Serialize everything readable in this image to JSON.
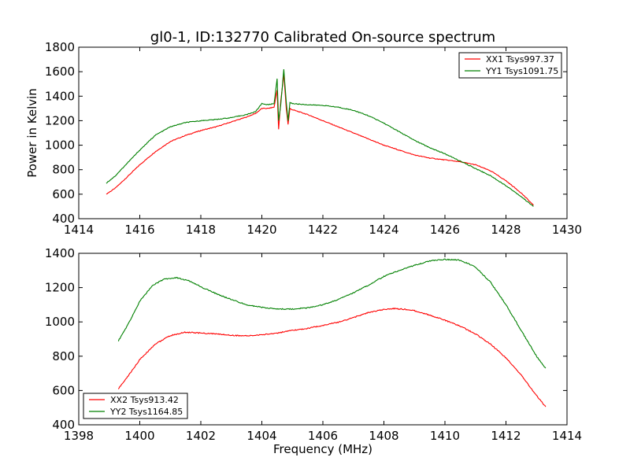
{
  "title": "gl0-1, ID:132770 Calibrated On-source spectrum",
  "chart_data": [
    {
      "type": "line",
      "title": "gl0-1, ID:132770 Calibrated On-source spectrum",
      "xlabel": "",
      "ylabel": "Power in Kelvin",
      "xlim": [
        1414,
        1430
      ],
      "ylim": [
        400,
        1800
      ],
      "xticks": [
        1414,
        1416,
        1418,
        1420,
        1422,
        1424,
        1426,
        1428,
        1430
      ],
      "yticks": [
        400,
        600,
        800,
        1000,
        1200,
        1400,
        1600,
        1800
      ],
      "grid": false,
      "legend_placement": "top-right",
      "series": [
        {
          "name": "XX1 Tsys997.37",
          "color": "#ff0000",
          "points": [
            [
              1414.9,
              600
            ],
            [
              1415.2,
              650
            ],
            [
              1415.5,
              720
            ],
            [
              1416.0,
              840
            ],
            [
              1416.5,
              945
            ],
            [
              1417.0,
              1030
            ],
            [
              1417.5,
              1080
            ],
            [
              1418.0,
              1120
            ],
            [
              1418.5,
              1150
            ],
            [
              1419.0,
              1190
            ],
            [
              1419.5,
              1230
            ],
            [
              1419.8,
              1260
            ],
            [
              1420.0,
              1300
            ],
            [
              1420.2,
              1300
            ],
            [
              1420.4,
              1310
            ],
            [
              1420.5,
              1450
            ],
            [
              1420.55,
              1130
            ],
            [
              1420.62,
              1360
            ],
            [
              1420.72,
              1580
            ],
            [
              1420.8,
              1300
            ],
            [
              1420.86,
              1170
            ],
            [
              1420.92,
              1300
            ],
            [
              1421.0,
              1290
            ],
            [
              1421.5,
              1250
            ],
            [
              1422.0,
              1200
            ],
            [
              1422.5,
              1150
            ],
            [
              1423.0,
              1100
            ],
            [
              1423.5,
              1050
            ],
            [
              1424.0,
              1000
            ],
            [
              1424.5,
              960
            ],
            [
              1425.0,
              920
            ],
            [
              1425.5,
              895
            ],
            [
              1426.0,
              880
            ],
            [
              1426.5,
              865
            ],
            [
              1427.0,
              840
            ],
            [
              1427.5,
              790
            ],
            [
              1428.0,
              710
            ],
            [
              1428.5,
              610
            ],
            [
              1428.9,
              510
            ]
          ]
        },
        {
          "name": "YY1 Tsys1091.75",
          "color": "#008000",
          "points": [
            [
              1414.9,
              690
            ],
            [
              1415.2,
              750
            ],
            [
              1415.5,
              830
            ],
            [
              1416.0,
              960
            ],
            [
              1416.5,
              1080
            ],
            [
              1417.0,
              1150
            ],
            [
              1417.5,
              1185
            ],
            [
              1418.0,
              1200
            ],
            [
              1418.5,
              1210
            ],
            [
              1419.0,
              1225
            ],
            [
              1419.5,
              1250
            ],
            [
              1419.8,
              1275
            ],
            [
              1420.0,
              1340
            ],
            [
              1420.2,
              1330
            ],
            [
              1420.4,
              1340
            ],
            [
              1420.5,
              1540
            ],
            [
              1420.55,
              1200
            ],
            [
              1420.62,
              1330
            ],
            [
              1420.72,
              1620
            ],
            [
              1420.8,
              1350
            ],
            [
              1420.86,
              1200
            ],
            [
              1420.92,
              1350
            ],
            [
              1421.0,
              1340
            ],
            [
              1421.5,
              1330
            ],
            [
              1422.0,
              1325
            ],
            [
              1422.5,
              1310
            ],
            [
              1423.0,
              1285
            ],
            [
              1423.5,
              1240
            ],
            [
              1424.0,
              1180
            ],
            [
              1424.5,
              1110
            ],
            [
              1425.0,
              1040
            ],
            [
              1425.5,
              980
            ],
            [
              1426.0,
              930
            ],
            [
              1426.5,
              870
            ],
            [
              1427.0,
              810
            ],
            [
              1427.5,
              750
            ],
            [
              1428.0,
              670
            ],
            [
              1428.5,
              580
            ],
            [
              1428.9,
              500
            ]
          ]
        }
      ]
    },
    {
      "type": "line",
      "title": "",
      "xlabel": "Frequency (MHz)",
      "ylabel": "",
      "xlim": [
        1398,
        1414
      ],
      "ylim": [
        400,
        1400
      ],
      "xticks": [
        1398,
        1400,
        1402,
        1404,
        1406,
        1408,
        1410,
        1412,
        1414
      ],
      "yticks": [
        400,
        600,
        800,
        1000,
        1200,
        1400
      ],
      "grid": false,
      "legend_placement": "bottom-left",
      "series": [
        {
          "name": "XX2 Tsys913.42",
          "color": "#ff0000",
          "points": [
            [
              1399.3,
              610
            ],
            [
              1399.6,
              680
            ],
            [
              1400.0,
              780
            ],
            [
              1400.5,
              870
            ],
            [
              1401.0,
              920
            ],
            [
              1401.5,
              940
            ],
            [
              1402.0,
              935
            ],
            [
              1402.5,
              930
            ],
            [
              1403.0,
              922
            ],
            [
              1403.5,
              918
            ],
            [
              1404.0,
              925
            ],
            [
              1404.5,
              935
            ],
            [
              1405.0,
              950
            ],
            [
              1405.5,
              962
            ],
            [
              1406.0,
              980
            ],
            [
              1406.5,
              998
            ],
            [
              1407.0,
              1025
            ],
            [
              1407.5,
              1055
            ],
            [
              1408.0,
              1072
            ],
            [
              1408.3,
              1078
            ],
            [
              1408.7,
              1073
            ],
            [
              1409.0,
              1065
            ],
            [
              1409.5,
              1040
            ],
            [
              1410.0,
              1010
            ],
            [
              1410.5,
              975
            ],
            [
              1411.0,
              930
            ],
            [
              1411.5,
              870
            ],
            [
              1412.0,
              790
            ],
            [
              1412.5,
              690
            ],
            [
              1413.0,
              570
            ],
            [
              1413.3,
              505
            ]
          ]
        },
        {
          "name": "YY2 Tsys1164.85",
          "color": "#008000",
          "points": [
            [
              1399.3,
              890
            ],
            [
              1399.6,
              980
            ],
            [
              1400.0,
              1120
            ],
            [
              1400.4,
              1210
            ],
            [
              1400.8,
              1250
            ],
            [
              1401.2,
              1258
            ],
            [
              1401.6,
              1240
            ],
            [
              1402.0,
              1205
            ],
            [
              1402.5,
              1165
            ],
            [
              1403.0,
              1130
            ],
            [
              1403.5,
              1100
            ],
            [
              1404.0,
              1085
            ],
            [
              1404.5,
              1075
            ],
            [
              1405.0,
              1075
            ],
            [
              1405.5,
              1082
            ],
            [
              1406.0,
              1100
            ],
            [
              1406.5,
              1130
            ],
            [
              1407.0,
              1170
            ],
            [
              1407.5,
              1215
            ],
            [
              1408.0,
              1265
            ],
            [
              1408.5,
              1300
            ],
            [
              1409.0,
              1330
            ],
            [
              1409.5,
              1355
            ],
            [
              1410.0,
              1365
            ],
            [
              1410.5,
              1360
            ],
            [
              1411.0,
              1320
            ],
            [
              1411.5,
              1230
            ],
            [
              1412.0,
              1100
            ],
            [
              1412.5,
              950
            ],
            [
              1413.0,
              800
            ],
            [
              1413.3,
              730
            ]
          ]
        }
      ]
    }
  ]
}
